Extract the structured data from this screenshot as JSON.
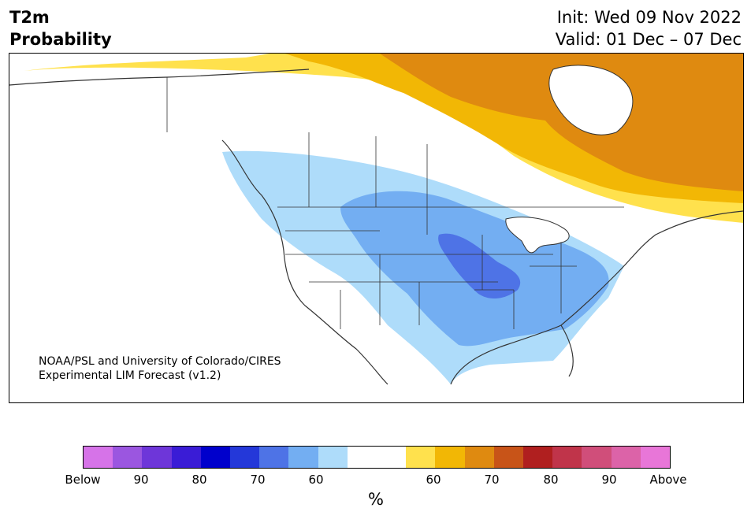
{
  "header": {
    "variable": "T2m",
    "product": "Probability",
    "init": "Init: Wed 09 Nov 2022",
    "valid": "Valid: 01 Dec – 07 Dec"
  },
  "credit": {
    "line1": "NOAA/PSL and University of Colorado/CIRES",
    "line2": "Experimental LIM Forecast (v1.2)"
  },
  "colorbar": {
    "unit": "%",
    "colors": [
      "#d673e8",
      "#9b56e0",
      "#6e36d9",
      "#3a1cd6",
      "#0000cc",
      "#2438d9",
      "#4e73e6",
      "#73aef2",
      "#aedcfa",
      "#ffffff",
      "#ffffff",
      "#ffe14d",
      "#f2b705",
      "#df8a10",
      "#c85418",
      "#b01f1f",
      "#c0344a",
      "#d04e7a",
      "#dc63a8",
      "#e876d8"
    ],
    "tick_labels": [
      "Below",
      "90",
      "80",
      "70",
      "60",
      "60",
      "70",
      "80",
      "90",
      "Above"
    ]
  },
  "regions": {
    "below": [
      "below-60",
      "below-70",
      "below-80"
    ],
    "above": [
      "above-60",
      "above-70",
      "above-80"
    ]
  }
}
